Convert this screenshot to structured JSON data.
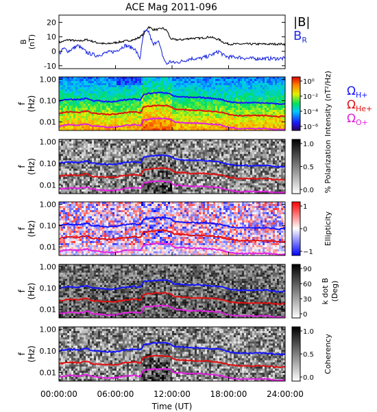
{
  "title": "ACE Mag 2011-096",
  "x_axis": {
    "label": "Time (UT)",
    "ticks": [
      "00:00:00",
      "06:00:00",
      "12:00:00",
      "18:00:00",
      "24:00:00"
    ],
    "range_hours": [
      0,
      24
    ]
  },
  "colors": {
    "B_total": "#000000",
    "B_R": "#1f2be0",
    "H_plus": "#1414ff",
    "He_plus": "#e01010",
    "O_plus": "#e020e0"
  },
  "chart_data": [
    {
      "type": "line",
      "panel": "B",
      "ylabel": [
        "B",
        "(nT)"
      ],
      "ylim": [
        -12,
        25
      ],
      "yticks": [
        "-10",
        "0",
        "10",
        "20"
      ],
      "legend": [
        {
          "text": "|B|",
          "color": "#000000"
        },
        {
          "text": "B",
          "sub": "R",
          "color": "#1f2be0"
        }
      ],
      "series": [
        {
          "name": "|B|",
          "color": "#000000",
          "x": [
            0,
            1,
            2,
            3,
            4,
            5,
            6,
            7,
            8,
            8.6,
            9,
            9.5,
            10,
            10.5,
            11,
            11.5,
            11.8,
            12.2,
            13,
            14,
            15,
            16,
            17,
            17.5,
            18,
            19,
            20,
            21,
            22,
            23,
            24
          ],
          "y": [
            6,
            8,
            7,
            8,
            6,
            5,
            6,
            7,
            8,
            10,
            12,
            17,
            15,
            15,
            16,
            14,
            9,
            8,
            8,
            9,
            9,
            10,
            8,
            6,
            5,
            5,
            5,
            5,
            5,
            5,
            5
          ]
        },
        {
          "name": "B_R",
          "color": "#1f2be0",
          "x": [
            0,
            0.5,
            1,
            2,
            3,
            4,
            5,
            6,
            7,
            8,
            8.6,
            9,
            9.5,
            10,
            10.5,
            11,
            11.4,
            11.8,
            12.2,
            13,
            14,
            15,
            16,
            17,
            17.5,
            18,
            19,
            20,
            21,
            22,
            23,
            24
          ],
          "y": [
            -2,
            2,
            0,
            4,
            -1,
            -3,
            -1,
            0,
            4,
            2,
            -5,
            13,
            14,
            4,
            8,
            -3,
            -9,
            -7,
            -8,
            -7,
            -5,
            -5,
            -3,
            0,
            -3,
            -4,
            -4,
            -5,
            -5,
            -5,
            -5,
            -5
          ]
        }
      ]
    },
    {
      "type": "heatmap",
      "panel": "Intensity",
      "ylabel": [
        "f",
        "(Hz)"
      ],
      "yticks": [
        "1.00",
        "0.10",
        "0.01"
      ],
      "colorbar": {
        "label": "Intensity (nT²/Hz)",
        "ticks": [
          "10⁰",
          "10⁻²",
          "10⁻⁴",
          "10⁻⁶"
        ],
        "scale": "rainbow"
      },
      "legend": [
        {
          "text": "Ω",
          "sub": "H+",
          "color": "#1414ff"
        },
        {
          "text": "Ω",
          "sub": "He+",
          "color": "#e01010"
        },
        {
          "text": "Ω",
          "sub": "O+",
          "color": "#e020e0"
        }
      ]
    },
    {
      "type": "heatmap",
      "panel": "Polarization",
      "ylabel": [
        "f",
        "(Hz)"
      ],
      "yticks": [
        "1.00",
        "0.10",
        "0.01"
      ],
      "colorbar": {
        "label": "% Polarization",
        "ticks": [
          "1.0",
          "0.5",
          "0.0"
        ],
        "scale": "gray"
      }
    },
    {
      "type": "heatmap",
      "panel": "Ellipticity",
      "ylabel": [
        "f",
        "(Hz)"
      ],
      "yticks": [
        "1.00",
        "0.10",
        "0.01"
      ],
      "colorbar": {
        "label": "Ellipticity",
        "ticks": [
          "1",
          "0",
          "−1"
        ],
        "scale": "redblue"
      }
    },
    {
      "type": "heatmap",
      "panel": "kdotB",
      "ylabel": [
        "f",
        "(Hz)"
      ],
      "yticks": [
        "1.00",
        "0.10",
        "0.01"
      ],
      "colorbar": {
        "label": "k dot B",
        "label2": "(Deg)",
        "ticks": [
          "90",
          "60",
          "30",
          "0"
        ],
        "scale": "gray"
      }
    },
    {
      "type": "heatmap",
      "panel": "Coherency",
      "ylabel": [
        "f",
        "(Hz)"
      ],
      "yticks": [
        "1.00",
        "0.10",
        "0.01"
      ],
      "colorbar": {
        "label": "Coherency",
        "ticks": [
          "1.0",
          "0.5",
          "0.0"
        ],
        "scale": "gray"
      }
    }
  ],
  "gyrofrequency_lines": {
    "x": [
      0,
      1,
      2,
      3,
      3.5,
      4,
      5,
      6,
      7,
      8,
      8.5,
      8.7,
      9,
      10,
      11,
      11.8,
      12.2,
      13,
      14,
      15,
      16,
      17,
      18,
      19,
      20,
      21,
      22,
      23,
      24
    ],
    "H_plus_hz": [
      0.1,
      0.12,
      0.11,
      0.13,
      0.1,
      0.1,
      0.09,
      0.09,
      0.11,
      0.12,
      0.11,
      0.11,
      0.2,
      0.23,
      0.24,
      0.22,
      0.16,
      0.15,
      0.14,
      0.14,
      0.13,
      0.12,
      0.09,
      0.08,
      0.08,
      0.08,
      0.08,
      0.07,
      0.07
    ],
    "He_plus_hz": [
      0.025,
      0.03,
      0.028,
      0.033,
      0.025,
      0.025,
      0.023,
      0.023,
      0.028,
      0.03,
      0.028,
      0.028,
      0.05,
      0.058,
      0.06,
      0.055,
      0.04,
      0.038,
      0.035,
      0.035,
      0.033,
      0.03,
      0.023,
      0.02,
      0.02,
      0.02,
      0.02,
      0.018,
      0.018
    ],
    "O_plus_hz": [
      0.0063,
      0.0075,
      0.0069,
      0.0081,
      0.0063,
      0.0063,
      0.0056,
      0.0056,
      0.0069,
      0.0075,
      0.0069,
      0.0069,
      0.0125,
      0.0144,
      0.015,
      0.0138,
      0.01,
      0.0094,
      0.0088,
      0.0088,
      0.0081,
      0.0075,
      0.0056,
      0.005,
      0.005,
      0.005,
      0.005,
      0.0044,
      0.0044
    ]
  }
}
